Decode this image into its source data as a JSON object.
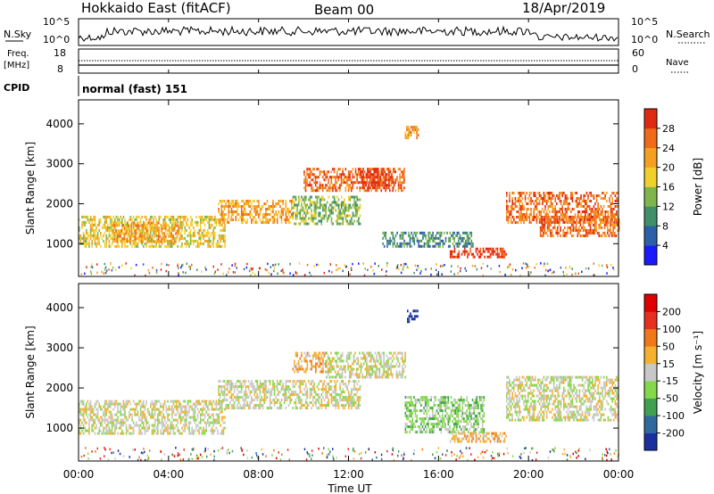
{
  "header": {
    "station": "Hokkaido East (fitACF)",
    "beam": "Beam 00",
    "date": "18/Apr/2019"
  },
  "noise_panel": {
    "left_label": "N.Sky",
    "right_label": "N.Search",
    "y_ticks": [
      "10^5",
      "10^0"
    ],
    "right_y_ticks": [
      "10^5",
      "10^0"
    ]
  },
  "freq_panel": {
    "left_label_1": "Freq.",
    "left_label_2": "[MHz]",
    "right_label": "Nave",
    "y_ticks": [
      "18",
      "8"
    ],
    "right_y_ticks": [
      "60",
      "0"
    ]
  },
  "cpid_panel": {
    "label": "CPID",
    "value": "normal (fast) 151"
  },
  "x_axis": {
    "title": "Time UT",
    "ticks": [
      "00:00",
      "04:00",
      "08:00",
      "12:00",
      "16:00",
      "20:00",
      "00:00"
    ]
  },
  "chart_data": [
    {
      "type": "heatmap",
      "name": "power",
      "ylabel": "Slant Range [km]",
      "y_ticks": [
        1000,
        2000,
        3000,
        4000
      ],
      "ylim": [
        180,
        4600
      ],
      "xlim_hours": [
        0,
        24
      ],
      "colorbar": {
        "label": "Power [dB]",
        "ticks": [
          "4",
          "8",
          "12",
          "16",
          "20",
          "24",
          "28"
        ],
        "colors": [
          "#1a1aff",
          "#2d5fa8",
          "#3f8f6a",
          "#7fb64b",
          "#f2d02b",
          "#f5a020",
          "#f06a18",
          "#e02a10"
        ]
      },
      "regions": [
        {
          "t": [
            0.0,
            6.5
          ],
          "r": [
            900,
            1700
          ],
          "level": 4
        },
        {
          "t": [
            1.5,
            4.5
          ],
          "r": [
            1050,
            1550
          ],
          "level": 5
        },
        {
          "t": [
            6.2,
            9.5
          ],
          "r": [
            1500,
            2100
          ],
          "level": 5
        },
        {
          "t": [
            9.5,
            12.5
          ],
          "r": [
            1500,
            2200
          ],
          "level": 3
        },
        {
          "t": [
            10.0,
            14.5
          ],
          "r": [
            2300,
            2900
          ],
          "level": 6
        },
        {
          "t": [
            12.5,
            14.0
          ],
          "r": [
            2400,
            2900
          ],
          "level": 7
        },
        {
          "t": [
            14.5,
            15.1
          ],
          "r": [
            3650,
            3950
          ],
          "level": 5
        },
        {
          "t": [
            13.5,
            17.5
          ],
          "r": [
            900,
            1300
          ],
          "level": 2
        },
        {
          "t": [
            16.5,
            19.0
          ],
          "r": [
            650,
            900
          ],
          "level": 7
        },
        {
          "t": [
            19.0,
            24.0
          ],
          "r": [
            1500,
            2300
          ],
          "level": 6
        },
        {
          "t": [
            20.5,
            24.0
          ],
          "r": [
            1200,
            1700
          ],
          "level": 6
        }
      ]
    },
    {
      "type": "heatmap",
      "name": "velocity",
      "ylabel": "Slant Range [km]",
      "y_ticks": [
        1000,
        2000,
        3000,
        4000
      ],
      "ylim": [
        180,
        4600
      ],
      "xlim_hours": [
        0,
        24
      ],
      "colorbar": {
        "label": "Velocity [m s⁻¹]",
        "ticks": [
          "200",
          "100",
          "50",
          "15",
          "-15",
          "-50",
          "-100",
          "-200"
        ],
        "colors": [
          "#1a2fa0",
          "#2f6a9e",
          "#3fa050",
          "#85d84a",
          "#c8c8c8",
          "#f5b030",
          "#f07818",
          "#e63020",
          "#e00000"
        ]
      },
      "regions": [
        {
          "t": [
            0.0,
            6.5
          ],
          "r": [
            900,
            1700
          ],
          "level": 4
        },
        {
          "t": [
            6.2,
            12.5
          ],
          "r": [
            1500,
            2200
          ],
          "level": 4
        },
        {
          "t": [
            9.5,
            11.0
          ],
          "r": [
            2400,
            2900
          ],
          "level": 5
        },
        {
          "t": [
            11.0,
            14.5
          ],
          "r": [
            2300,
            2900
          ],
          "level": 4
        },
        {
          "t": [
            14.6,
            15.1
          ],
          "r": [
            3650,
            3950
          ],
          "level": 0
        },
        {
          "t": [
            14.5,
            18.0
          ],
          "r": [
            900,
            1800
          ],
          "level": 3
        },
        {
          "t": [
            16.5,
            19.0
          ],
          "r": [
            650,
            900
          ],
          "level": 5
        },
        {
          "t": [
            19.0,
            24.0
          ],
          "r": [
            1200,
            2300
          ],
          "level": 4
        }
      ]
    }
  ]
}
